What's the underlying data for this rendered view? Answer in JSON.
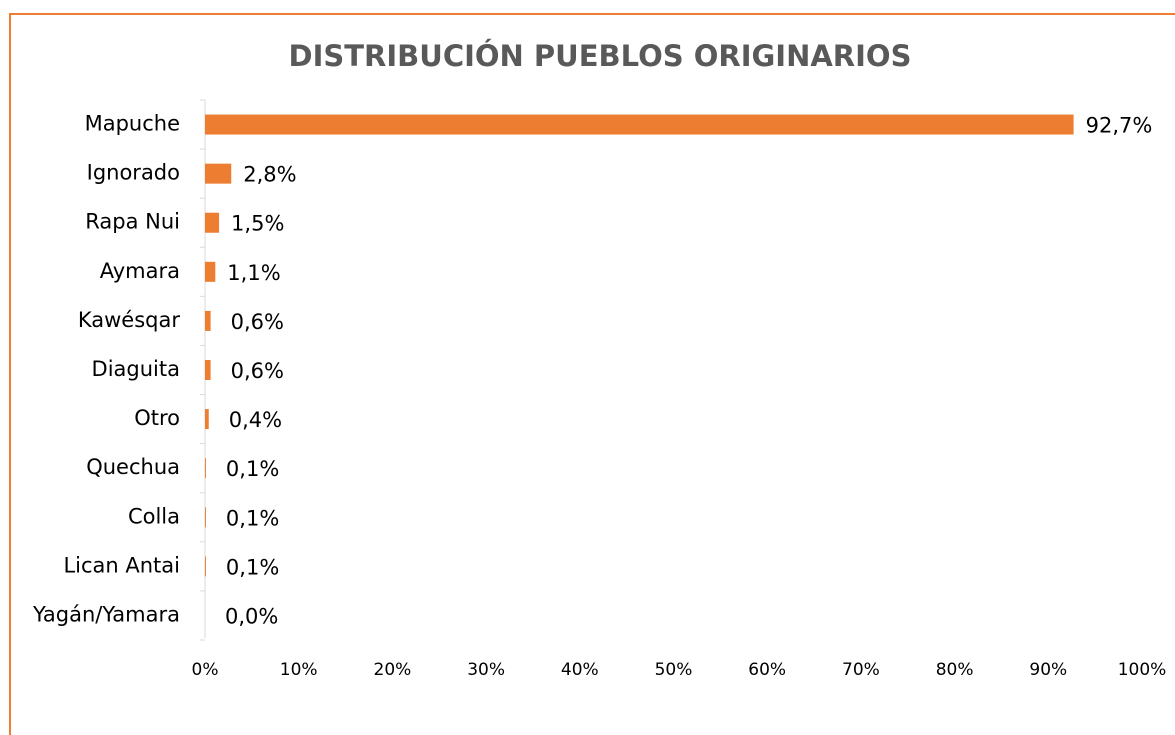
{
  "chart_data": {
    "type": "barh",
    "title": "DISTRIBUCIÓN PUEBLOS ORIGINARIOS",
    "categories": [
      "Mapuche",
      "Ignorado",
      "Rapa Nui",
      "Aymara",
      "Kawésqar",
      "Diaguita",
      "Otro",
      "Quechua",
      "Colla",
      "Lican Antai",
      "Yagán/Yamara"
    ],
    "values": [
      92.7,
      2.8,
      1.5,
      1.1,
      0.6,
      0.6,
      0.4,
      0.1,
      0.1,
      0.1,
      0.0
    ],
    "value_labels": [
      "92,7%",
      "2,8%",
      "1,5%",
      "1,1%",
      "0,6%",
      "0,6%",
      "0,4%",
      "0,1%",
      "0,1%",
      "0,1%",
      "0,0%"
    ],
    "color": "#ed7d31",
    "xlim": [
      0,
      100
    ],
    "xticks": [
      {
        "value": 0,
        "label": "0%"
      },
      {
        "value": 10,
        "label": "10%"
      },
      {
        "value": 20,
        "label": "20%"
      },
      {
        "value": 30,
        "label": "30%"
      },
      {
        "value": 40,
        "label": "40%"
      },
      {
        "value": 50,
        "label": "50%"
      },
      {
        "value": 60,
        "label": "60%"
      },
      {
        "value": 70,
        "label": "70%"
      },
      {
        "value": 80,
        "label": "80%"
      },
      {
        "value": 90,
        "label": "90%"
      },
      {
        "value": 100,
        "label": "100%"
      }
    ],
    "grid": false
  }
}
